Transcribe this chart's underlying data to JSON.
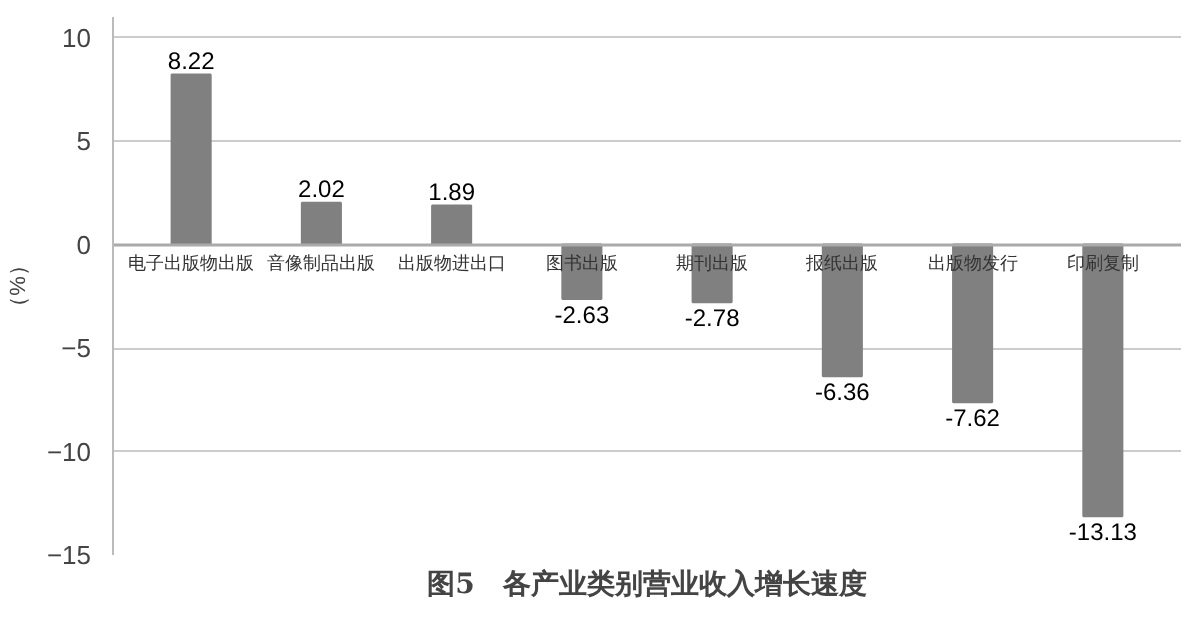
{
  "chart_data": {
    "type": "bar",
    "title": "图5　各产业类别营业收入增长速度",
    "ylabel": "（%）",
    "categories": [
      "电子出版物出版",
      "音像制品出版",
      "出版物进出口",
      "图书出版",
      "期刊出版",
      "报纸出版",
      "出版物发行",
      "印刷复制"
    ],
    "values": [
      8.22,
      2.02,
      1.89,
      -2.63,
      -2.78,
      -6.36,
      -7.62,
      -13.13
    ],
    "color": "#808080",
    "ylim": [
      -15,
      11
    ],
    "yticks": [
      -15,
      -10,
      -5,
      0,
      5,
      10
    ],
    "grid": "y",
    "data_labels": true
  }
}
